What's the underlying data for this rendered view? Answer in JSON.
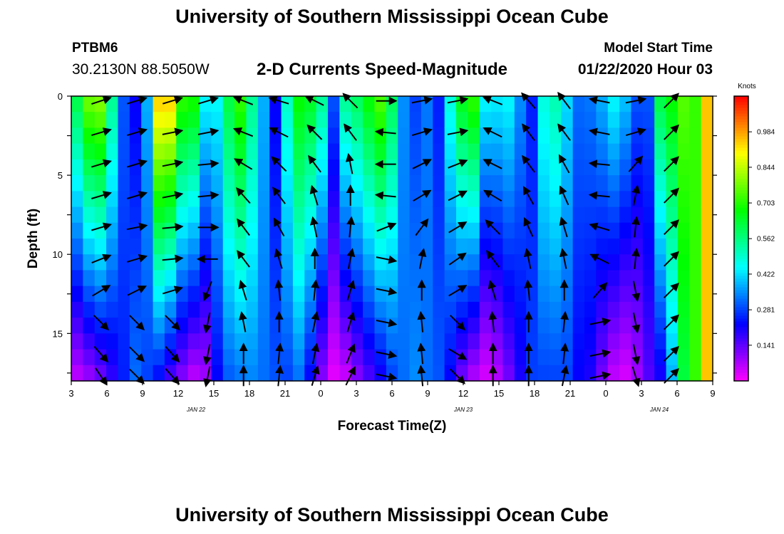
{
  "header": {
    "title": "University of Southern Mississippi Ocean Cube",
    "station_id": "PTBM6",
    "station_coords": "30.2130N 88.5050W",
    "plot_title": "2-D Currents Speed-Magnitude",
    "model_start_label": "Model Start Time",
    "model_start_value": "01/22/2020 Hour 03"
  },
  "footer": {
    "title": "University of Southern Mississippi Ocean Cube"
  },
  "chart_data": {
    "type": "heatmap",
    "title": "2-D Currents Speed-Magnitude",
    "xlabel": "Forecast Time(Z)",
    "ylabel": "Depth (ft)",
    "x_range_hours": [
      0,
      54
    ],
    "y_range_ft": [
      0,
      18
    ],
    "x_tick_labels": [
      "3",
      "6",
      "9",
      "12",
      "15",
      "18",
      "21",
      "0",
      "3",
      "6",
      "9",
      "12",
      "15",
      "18",
      "21",
      "0",
      "3",
      "6",
      "9"
    ],
    "y_ticks": [
      0,
      5,
      10,
      15
    ],
    "y_tick_labels": [
      "0",
      "5",
      "10",
      "15"
    ],
    "date_labels": [
      {
        "text": "JAN 22",
        "hour": 10.5
      },
      {
        "text": "JAN 23",
        "hour": 33
      },
      {
        "text": "JAN 24",
        "hour": 49.5
      }
    ],
    "colorbar": {
      "unit": "Knots",
      "min": 0,
      "max": 1.125,
      "ticks": [
        0.141,
        0.281,
        0.422,
        0.562,
        0.703,
        0.844,
        0.984
      ],
      "tick_labels": [
        "0.141",
        "0.281",
        "0.422",
        "0.562",
        "0.703",
        "0.844",
        "0.984"
      ]
    },
    "speed_surface_knots": [
      0.62,
      0.78,
      0.8,
      0.55,
      0.3,
      0.22,
      0.38,
      0.95,
      0.95,
      0.72,
      0.7,
      0.45,
      0.45,
      0.62,
      0.72,
      0.55,
      0.38,
      0.22,
      0.5,
      0.68,
      0.65,
      0.55,
      0.3,
      0.55,
      0.6,
      0.68,
      0.75,
      0.6,
      0.35,
      0.28,
      0.33,
      0.25,
      0.48,
      0.66,
      0.72,
      0.45,
      0.44,
      0.45,
      0.35,
      0.25,
      0.48,
      0.52,
      0.42,
      0.32,
      0.33,
      0.38,
      0.45,
      0.4,
      0.3,
      0.3,
      0.62,
      0.68,
      0.75,
      0.72,
      0.95
    ],
    "speed_bottom_knots": [
      0.05,
      0.08,
      0.12,
      0.18,
      0.25,
      0.32,
      0.28,
      0.22,
      0.15,
      0.1,
      0.05,
      0.08,
      0.22,
      0.3,
      0.32,
      0.34,
      0.32,
      0.3,
      0.28,
      0.32,
      0.22,
      0.1,
      0.02,
      0.04,
      0.1,
      0.15,
      0.2,
      0.28,
      0.32,
      0.35,
      0.32,
      0.3,
      0.22,
      0.12,
      0.06,
      0.03,
      0.06,
      0.12,
      0.2,
      0.28,
      0.28,
      0.28,
      0.28,
      0.22,
      0.2,
      0.12,
      0.05,
      0.03,
      0.08,
      0.15,
      0.2,
      0.38,
      0.62,
      0.72,
      0.95
    ],
    "vector_depths_ft": [
      0.3,
      2.3,
      4.3,
      6.3,
      8.3,
      10.3,
      12.3,
      14.3,
      16.3,
      17.7
    ],
    "vector_columns": [
      {
        "hour": 2.5,
        "dirs": [
          [
            1,
            0.33
          ],
          [
            1,
            0.3
          ],
          [
            1,
            0.3
          ],
          [
            1,
            0.3
          ],
          [
            1,
            0.3
          ],
          [
            1,
            0.4
          ],
          [
            1,
            0.6
          ],
          [
            0.8,
            -0.8
          ],
          [
            0.7,
            -0.8
          ],
          [
            0.6,
            -0.9
          ]
        ]
      },
      {
        "hour": 5.5,
        "dirs": [
          [
            1,
            0.3
          ],
          [
            1,
            0.3
          ],
          [
            1,
            0.3
          ],
          [
            1,
            0.3
          ],
          [
            1,
            0.2
          ],
          [
            1,
            0.3
          ],
          [
            1,
            0.5
          ],
          [
            0.7,
            -0.7
          ],
          [
            0.7,
            -0.7
          ],
          [
            0.7,
            -0.7
          ]
        ]
      },
      {
        "hour": 8.5,
        "dirs": [
          [
            1,
            0.3
          ],
          [
            1,
            0.2
          ],
          [
            1,
            0.2
          ],
          [
            1,
            0.2
          ],
          [
            1,
            0.1
          ],
          [
            1,
            0.1
          ],
          [
            1,
            0.3
          ],
          [
            0.7,
            -0.7
          ],
          [
            0.7,
            -0.8
          ],
          [
            0.7,
            -0.8
          ]
        ]
      },
      {
        "hour": 11.5,
        "dirs": [
          [
            1,
            0.3
          ],
          [
            1,
            0.2
          ],
          [
            1,
            0.1
          ],
          [
            1,
            0.1
          ],
          [
            1,
            0
          ],
          [
            -1,
            0
          ],
          [
            -0.4,
            -1
          ],
          [
            -0.2,
            -1
          ],
          [
            -0.2,
            -1
          ],
          [
            -0.2,
            -1
          ]
        ]
      },
      {
        "hour": 14.5,
        "dirs": [
          [
            -1,
            0.4
          ],
          [
            -1,
            0.4
          ],
          [
            -1,
            0.6
          ],
          [
            -0.7,
            0.8
          ],
          [
            -0.6,
            0.8
          ],
          [
            -0.6,
            0.8
          ],
          [
            -0.3,
            1
          ],
          [
            -0.2,
            1
          ],
          [
            0,
            1
          ],
          [
            0,
            1
          ]
        ]
      },
      {
        "hour": 17.5,
        "dirs": [
          [
            -1,
            0.3
          ],
          [
            -1,
            0.5
          ],
          [
            -0.7,
            0.7
          ],
          [
            -0.6,
            0.8
          ],
          [
            -0.5,
            0.9
          ],
          [
            -0.3,
            1
          ],
          [
            -0.1,
            1
          ],
          [
            0,
            1
          ],
          [
            0.1,
            1
          ],
          [
            0.1,
            1
          ]
        ]
      },
      {
        "hour": 20.5,
        "dirs": [
          [
            -1,
            0.5
          ],
          [
            -0.7,
            0.7
          ],
          [
            -0.6,
            0.8
          ],
          [
            -0.3,
            1
          ],
          [
            -0.2,
            1
          ],
          [
            0,
            1
          ],
          [
            0.1,
            1
          ],
          [
            0.2,
            1
          ],
          [
            0.2,
            1
          ],
          [
            0.3,
            1
          ]
        ]
      },
      {
        "hour": 23.5,
        "dirs": [
          [
            -0.7,
            0.7
          ],
          [
            -0.6,
            0.8
          ],
          [
            -0.2,
            1
          ],
          [
            0,
            1
          ],
          [
            0.1,
            1
          ],
          [
            0.2,
            1
          ],
          [
            0.3,
            1
          ],
          [
            0.3,
            1
          ],
          [
            0.4,
            1
          ],
          [
            0.5,
            1
          ]
        ]
      },
      {
        "hour": 26.5,
        "dirs": [
          [
            1,
            0
          ],
          [
            -1,
            0.1
          ],
          [
            -1,
            0
          ],
          [
            -1,
            0.1
          ],
          [
            1,
            0.4
          ],
          [
            1,
            -0.2
          ],
          [
            1,
            -0.2
          ],
          [
            1,
            -0.2
          ],
          [
            1,
            -0.2
          ],
          [
            1,
            -0.2
          ]
        ]
      },
      {
        "hour": 29.5,
        "dirs": [
          [
            1,
            0.2
          ],
          [
            1,
            0.3
          ],
          [
            1,
            0.5
          ],
          [
            1,
            0.6
          ],
          [
            0.6,
            0.8
          ],
          [
            0.2,
            1
          ],
          [
            0,
            1
          ],
          [
            -0.1,
            1
          ],
          [
            -0.1,
            1
          ],
          [
            -0.1,
            1
          ]
        ]
      },
      {
        "hour": 32.5,
        "dirs": [
          [
            1,
            0.2
          ],
          [
            1,
            0.2
          ],
          [
            1,
            0.4
          ],
          [
            1,
            0.5
          ],
          [
            1,
            0.6
          ],
          [
            1,
            0.7
          ],
          [
            1,
            0.6
          ],
          [
            0.8,
            -0.8
          ],
          [
            1,
            -0.6
          ],
          [
            0.7,
            -0.7
          ]
        ]
      },
      {
        "hour": 35.5,
        "dirs": [
          [
            -1,
            0.4
          ],
          [
            -1,
            0.5
          ],
          [
            -1,
            0.5
          ],
          [
            -1,
            0.6
          ],
          [
            -0.7,
            0.7
          ],
          [
            -0.6,
            0.8
          ],
          [
            -0.3,
            1
          ],
          [
            -0.1,
            1
          ],
          [
            0,
            1
          ],
          [
            0,
            1
          ]
        ]
      },
      {
        "hour": 38.5,
        "dirs": [
          [
            -0.7,
            0.8
          ],
          [
            -0.6,
            0.8
          ],
          [
            -0.6,
            0.8
          ],
          [
            -0.5,
            0.9
          ],
          [
            -0.4,
            0.9
          ],
          [
            -0.2,
            1
          ],
          [
            -0.1,
            1
          ],
          [
            0,
            1
          ],
          [
            0,
            1
          ],
          [
            0,
            1
          ]
        ]
      },
      {
        "hour": 41.5,
        "dirs": [
          [
            -0.6,
            0.8
          ],
          [
            -0.6,
            0.8
          ],
          [
            -0.5,
            0.9
          ],
          [
            -0.4,
            0.9
          ],
          [
            -0.3,
            1
          ],
          [
            -0.2,
            1
          ],
          [
            0,
            1
          ],
          [
            0.1,
            1
          ],
          [
            0.1,
            1
          ],
          [
            0.2,
            1
          ]
        ]
      },
      {
        "hour": 44.5,
        "dirs": [
          [
            -1,
            0.2
          ],
          [
            -1,
            0.2
          ],
          [
            -1,
            0.1
          ],
          [
            -1,
            0.1
          ],
          [
            -1,
            0.3
          ],
          [
            -1,
            0.5
          ],
          [
            0.7,
            0.8
          ],
          [
            1,
            0.2
          ],
          [
            1,
            0.2
          ],
          [
            1,
            0.2
          ]
        ]
      },
      {
        "hour": 47.5,
        "dirs": [
          [
            1,
            0.2
          ],
          [
            1,
            0.3
          ],
          [
            0.7,
            0.8
          ],
          [
            0.2,
            1
          ],
          [
            0.1,
            1
          ],
          [
            0.1,
            1
          ],
          [
            0.2,
            -1
          ],
          [
            0.2,
            -1
          ],
          [
            0.2,
            -1
          ],
          [
            0.3,
            -1
          ]
        ]
      },
      {
        "hour": 50.5,
        "dirs": [
          [
            0.7,
            0.7
          ],
          [
            0.7,
            0.7
          ],
          [
            0.7,
            0.7
          ],
          [
            0.7,
            0.7
          ],
          [
            0.7,
            0.7
          ],
          [
            0.7,
            0.7
          ],
          [
            0.7,
            0.7
          ],
          [
            0.7,
            0.7
          ],
          [
            0.7,
            0.7
          ],
          [
            0.7,
            0.7
          ]
        ]
      }
    ]
  }
}
